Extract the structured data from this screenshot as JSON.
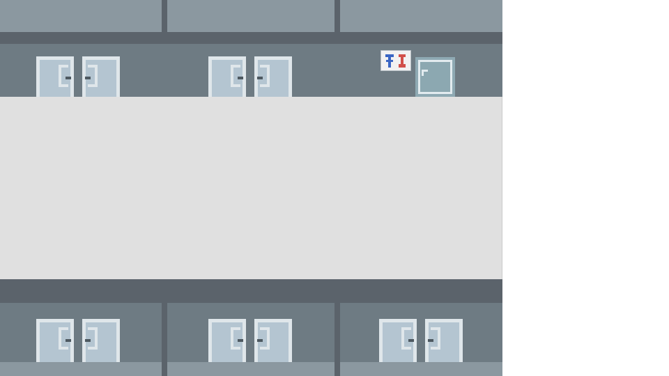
{
  "scene": {
    "type": "top-down hallway",
    "colors": {
      "roof": "#8b98a0",
      "wall": "#6e7b83",
      "ledge": "#5b636b",
      "walkway": "#e0e0e0",
      "door_frame": "#dfe6ea",
      "door_panel": "#b4c5d1",
      "window": "#8ea9b3",
      "restroom_male": "#3a66c4",
      "restroom_female": "#d1504a"
    },
    "top_row": {
      "double_doors": 2,
      "restroom_sign_icon": "restroom-sign-icon",
      "window_icon": "window-icon"
    },
    "bottom_row": {
      "double_doors": 3
    }
  }
}
